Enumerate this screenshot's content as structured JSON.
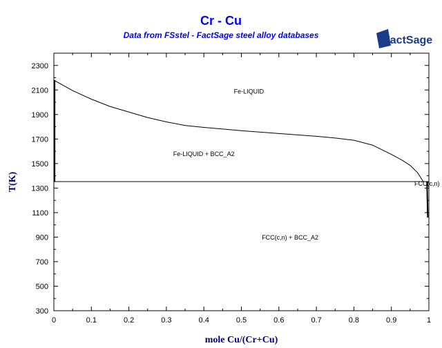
{
  "chart_data": {
    "type": "line",
    "title": "Cr - Cu",
    "subtitle": "Data from FSstel - FactSage steel alloy databases",
    "logo": "FactSage",
    "xlabel": "mole Cu/(Cr+Cu)",
    "ylabel": "T(K)",
    "xlim": [
      0,
      1
    ],
    "ylim": [
      300,
      2400
    ],
    "x_ticks": [
      "0",
      "0.1",
      "0.2",
      "0.3",
      "0.4",
      "0.5",
      "0.6",
      "0.7",
      "0.8",
      "0.9",
      "1"
    ],
    "y_ticks": [
      "300",
      "500",
      "700",
      "900",
      "1100",
      "1300",
      "1500",
      "1700",
      "1900",
      "2100",
      "2300"
    ],
    "grid": false,
    "colors": {
      "title": "#0000ff",
      "axis_label": "#000080",
      "line": "#000000"
    },
    "series": [
      {
        "x": [
          0,
          0.05,
          0.1,
          0.15,
          0.2,
          0.25,
          0.3,
          0.35,
          0.4,
          0.5,
          0.6,
          0.7,
          0.75,
          0.8,
          0.85,
          0.9,
          0.93,
          0.95,
          0.97,
          0.985
        ],
        "y": [
          2180,
          2095,
          2025,
          1965,
          1920,
          1875,
          1840,
          1810,
          1795,
          1768,
          1745,
          1722,
          1708,
          1690,
          1650,
          1575,
          1525,
          1485,
          1425,
          1353
        ]
      },
      {
        "x": [
          0,
          1
        ],
        "y": [
          1353,
          1353
        ]
      },
      {
        "x": [
          0.002,
          0.002
        ],
        "y": [
          2180,
          1353
        ]
      },
      {
        "x": [
          0.995,
          0.996,
          0.997
        ],
        "y": [
          1353,
          1200,
          1060
        ]
      }
    ],
    "annotations": [
      {
        "text": "Fe-LIQUID",
        "x": 0.52,
        "y": 2070
      },
      {
        "text": "Fe-LIQUID + BCC_A2",
        "x": 0.4,
        "y": 1560
      },
      {
        "text": "FCC(c,n)",
        "x": 0.995,
        "y": 1320
      },
      {
        "text": "FCC(c,n) + BCC_A2",
        "x": 0.63,
        "y": 880
      }
    ]
  }
}
